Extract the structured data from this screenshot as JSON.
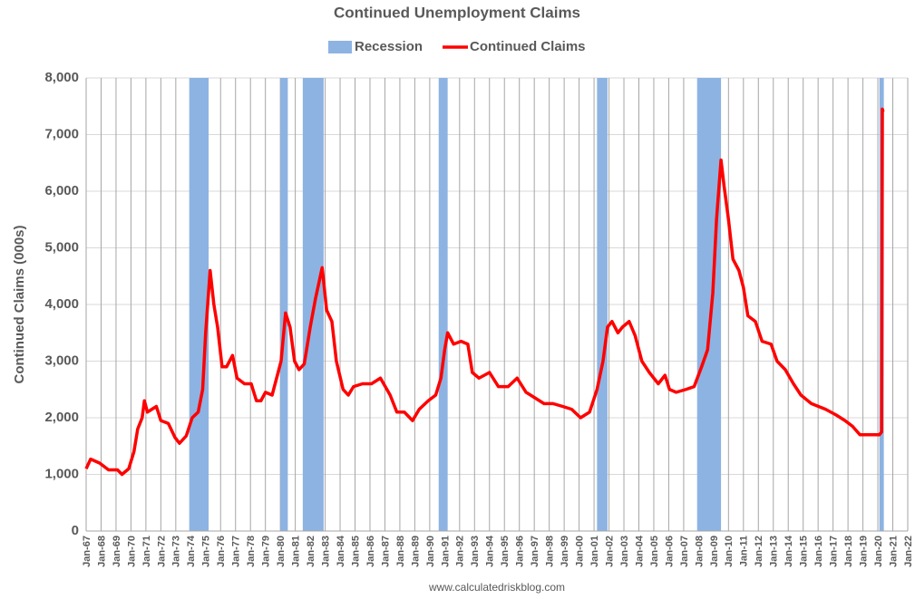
{
  "chart_data": {
    "type": "line",
    "title": "Continued Unemployment Claims",
    "y_label": "Continued Claims (000s)",
    "source": "www.calculatedriskblog.com",
    "xlim": [
      1967,
      2022
    ],
    "xticks": [
      {
        "value": 1967,
        "label": "Jan-67"
      },
      {
        "value": 1968,
        "label": "Jan-68"
      },
      {
        "value": 1969,
        "label": "Jan-69"
      },
      {
        "value": 1970,
        "label": "Jan-70"
      },
      {
        "value": 1971,
        "label": "Jan-71"
      },
      {
        "value": 1972,
        "label": "Jan-72"
      },
      {
        "value": 1973,
        "label": "Jan-73"
      },
      {
        "value": 1974,
        "label": "Jan-74"
      },
      {
        "value": 1975,
        "label": "Jan-75"
      },
      {
        "value": 1976,
        "label": "Jan-76"
      },
      {
        "value": 1977,
        "label": "Jan-77"
      },
      {
        "value": 1978,
        "label": "Jan-78"
      },
      {
        "value": 1979,
        "label": "Jan-79"
      },
      {
        "value": 1980,
        "label": "Jan-80"
      },
      {
        "value": 1981,
        "label": "Jan-81"
      },
      {
        "value": 1982,
        "label": "Jan-82"
      },
      {
        "value": 1983,
        "label": "Jan-83"
      },
      {
        "value": 1984,
        "label": "Jan-84"
      },
      {
        "value": 1985,
        "label": "Jan-85"
      },
      {
        "value": 1986,
        "label": "Jan-86"
      },
      {
        "value": 1987,
        "label": "Jan-87"
      },
      {
        "value": 1988,
        "label": "Jan-88"
      },
      {
        "value": 1989,
        "label": "Jan-89"
      },
      {
        "value": 1990,
        "label": "Jan-90"
      },
      {
        "value": 1991,
        "label": "Jan-91"
      },
      {
        "value": 1992,
        "label": "Jan-92"
      },
      {
        "value": 1993,
        "label": "Jan-93"
      },
      {
        "value": 1994,
        "label": "Jan-94"
      },
      {
        "value": 1995,
        "label": "Jan-95"
      },
      {
        "value": 1996,
        "label": "Jan-96"
      },
      {
        "value": 1997,
        "label": "Jan-97"
      },
      {
        "value": 1998,
        "label": "Jan-98"
      },
      {
        "value": 1999,
        "label": "Jan-99"
      },
      {
        "value": 2000,
        "label": "Jan-00"
      },
      {
        "value": 2001,
        "label": "Jan-01"
      },
      {
        "value": 2002,
        "label": "Jan-02"
      },
      {
        "value": 2003,
        "label": "Jan-03"
      },
      {
        "value": 2004,
        "label": "Jan-04"
      },
      {
        "value": 2005,
        "label": "Jan-05"
      },
      {
        "value": 2006,
        "label": "Jan-06"
      },
      {
        "value": 2007,
        "label": "Jan-07"
      },
      {
        "value": 2008,
        "label": "Jan-08"
      },
      {
        "value": 2009,
        "label": "Jan-09"
      },
      {
        "value": 2010,
        "label": "Jan-10"
      },
      {
        "value": 2011,
        "label": "Jan-11"
      },
      {
        "value": 2012,
        "label": "Jan-12"
      },
      {
        "value": 2013,
        "label": "Jan-13"
      },
      {
        "value": 2014,
        "label": "Jan-14"
      },
      {
        "value": 2015,
        "label": "Jan-15"
      },
      {
        "value": 2016,
        "label": "Jan-16"
      },
      {
        "value": 2017,
        "label": "Jan-17"
      },
      {
        "value": 2018,
        "label": "Jan-18"
      },
      {
        "value": 2019,
        "label": "Jan-19"
      },
      {
        "value": 2020,
        "label": "Jan-20"
      },
      {
        "value": 2021,
        "label": "Jan-21"
      },
      {
        "value": 2022,
        "label": "Jan-22"
      }
    ],
    "ylim": [
      0,
      8000
    ],
    "yticks": [
      0,
      {
        "value": 1000,
        "label": "1,000"
      },
      {
        "value": 2000,
        "label": "2,000"
      },
      {
        "value": 3000,
        "label": "3,000"
      },
      {
        "value": 4000,
        "label": "4,000"
      },
      {
        "value": 5000,
        "label": "5,000"
      },
      {
        "value": 6000,
        "label": "6,000"
      },
      {
        "value": 7000,
        "label": "7,000"
      },
      {
        "value": 8000,
        "label": "8,000"
      }
    ],
    "grid": true,
    "legend": "top",
    "recessions": {
      "name": "Recession",
      "color": "#8db3e2",
      "periods": [
        [
          1973.9,
          1975.2
        ],
        [
          1980.0,
          1980.5
        ],
        [
          1981.5,
          1982.9
        ],
        [
          1990.6,
          1991.2
        ],
        [
          2001.2,
          2001.9
        ],
        [
          2007.9,
          2009.5
        ],
        [
          2020.1,
          2020.4
        ]
      ]
    },
    "x": [
      1967.0,
      1967.3,
      1967.9,
      1968.5,
      1969.1,
      1969.4,
      1969.85,
      1970.2,
      1970.45,
      1970.75,
      1970.9,
      1971.1,
      1971.7,
      1972.0,
      1972.5,
      1972.95,
      1973.25,
      1973.7,
      1974.1,
      1974.5,
      1974.8,
      1975.0,
      1975.3,
      1975.55,
      1975.8,
      1976.1,
      1976.4,
      1976.8,
      1977.1,
      1977.6,
      1978.05,
      1978.4,
      1978.7,
      1979.0,
      1979.45,
      1979.75,
      1980.05,
      1980.35,
      1980.65,
      1980.95,
      1981.25,
      1981.6,
      1982.0,
      1982.35,
      1982.8,
      1983.1,
      1983.45,
      1983.75,
      1984.2,
      1984.55,
      1984.9,
      1985.5,
      1986.1,
      1986.7,
      1987.35,
      1987.8,
      1988.3,
      1988.85,
      1989.3,
      1989.9,
      1990.4,
      1990.75,
      1991.0,
      1991.2,
      1991.6,
      1992.1,
      1992.55,
      1992.85,
      1993.3,
      1994.0,
      1994.6,
      1995.25,
      1995.85,
      1996.45,
      1997.05,
      1997.65,
      1998.25,
      1998.9,
      1999.5,
      2000.1,
      2000.7,
      2001.2,
      2001.6,
      2001.9,
      2002.2,
      2002.6,
      2002.9,
      2003.35,
      2003.75,
      2004.2,
      2004.7,
      2005.3,
      2005.75,
      2006.05,
      2006.5,
      2007.15,
      2007.7,
      2008.2,
      2008.6,
      2008.95,
      2009.2,
      2009.5,
      2009.7,
      2010.0,
      2010.3,
      2010.7,
      2011.0,
      2011.3,
      2011.8,
      2012.25,
      2012.85,
      2013.25,
      2013.8,
      2014.35,
      2014.85,
      2015.55,
      2016.5,
      2017.2,
      2017.8,
      2018.3,
      2018.8,
      2019.5,
      2020.1,
      2020.25,
      2020.3,
      2020.35
    ],
    "series": [
      {
        "name": "Continued Claims",
        "color": "#ff0000",
        "values": [
          1100,
          1270,
          1200,
          1080,
          1080,
          1000,
          1100,
          1400,
          1800,
          2000,
          2300,
          2100,
          2200,
          1950,
          1900,
          1650,
          1550,
          1680,
          2000,
          2100,
          2500,
          3500,
          4600,
          4000,
          3600,
          2900,
          2900,
          3100,
          2700,
          2600,
          2600,
          2300,
          2300,
          2450,
          2400,
          2700,
          3000,
          3850,
          3600,
          3000,
          2850,
          2950,
          3600,
          4100,
          4650,
          3900,
          3700,
          3000,
          2500,
          2400,
          2550,
          2600,
          2600,
          2700,
          2400,
          2100,
          2100,
          1950,
          2150,
          2300,
          2400,
          2700,
          3200,
          3500,
          3300,
          3350,
          3300,
          2800,
          2700,
          2800,
          2550,
          2550,
          2700,
          2450,
          2350,
          2250,
          2250,
          2200,
          2150,
          2000,
          2100,
          2500,
          3000,
          3600,
          3700,
          3500,
          3600,
          3700,
          3450,
          3000,
          2800,
          2600,
          2750,
          2500,
          2450,
          2500,
          2550,
          2900,
          3200,
          4200,
          5500,
          6550,
          6100,
          5500,
          4800,
          4600,
          4300,
          3800,
          3700,
          3350,
          3300,
          3000,
          2850,
          2600,
          2400,
          2250,
          2150,
          2050,
          1950,
          1850,
          1700,
          1700,
          1700,
          1750,
          7450,
          7400
        ]
      }
    ]
  }
}
